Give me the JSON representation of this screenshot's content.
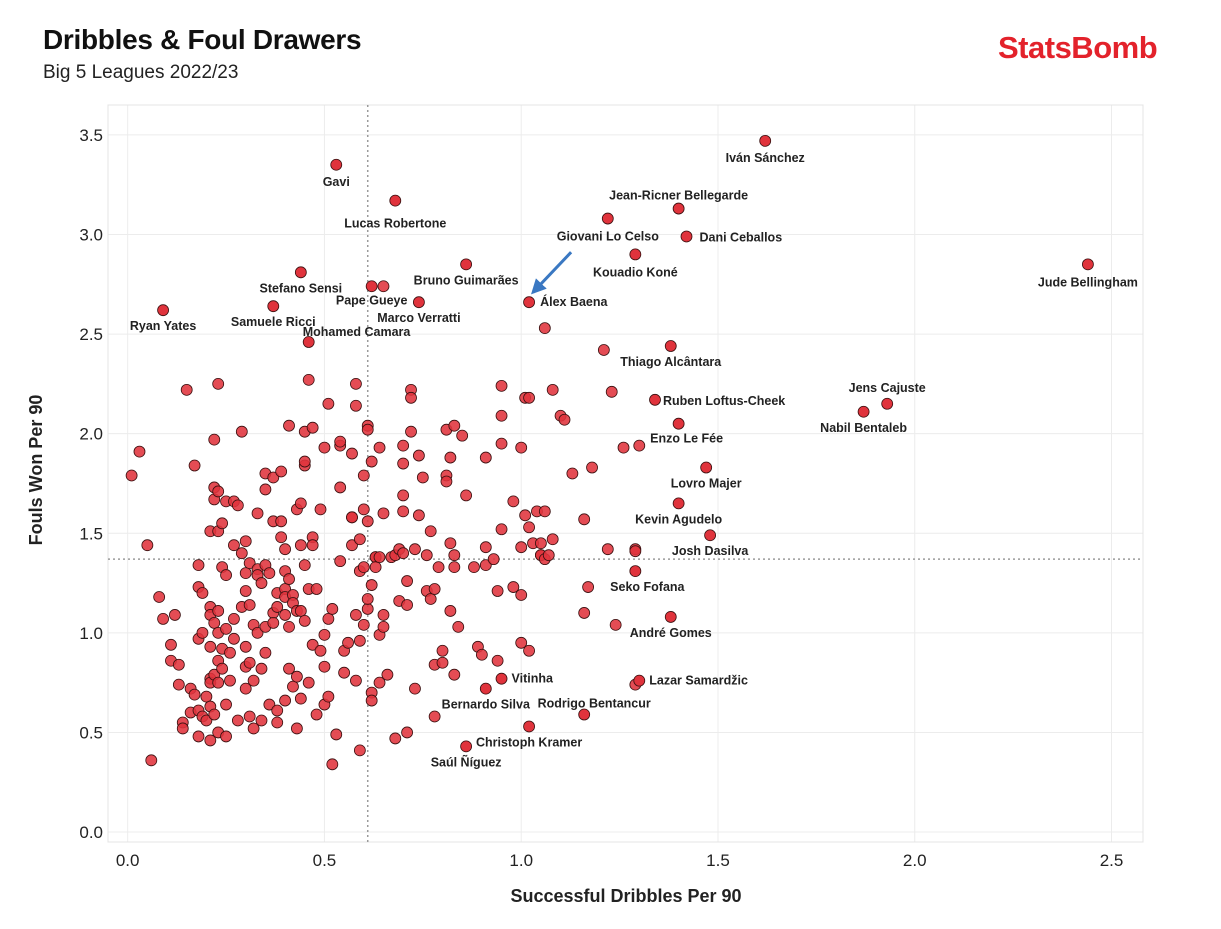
{
  "header": {
    "title": "Dribbles & Foul Drawers",
    "subtitle": "Big 5 Leagues 2022/23",
    "brand": "StatsBomb"
  },
  "colors": {
    "point_fill": "#e0333c",
    "point_stroke": "#3a1010",
    "ref_line": "#9a9a9a",
    "grid": "#ececec",
    "arrow": "#3a78c2",
    "brand": "#e3222b"
  },
  "chart_data": {
    "type": "scatter",
    "xlabel": "Successful Dribbles Per 90",
    "ylabel": "Fouls Won Per 90",
    "xlim": [
      -0.05,
      2.58
    ],
    "ylim": [
      -0.05,
      3.65
    ],
    "x_ticks": [
      0.0,
      0.5,
      1.0,
      1.5,
      2.0,
      2.5
    ],
    "y_ticks": [
      0.0,
      0.5,
      1.0,
      1.5,
      2.0,
      2.5,
      3.0,
      3.5
    ],
    "x_tick_labels": [
      "0.0",
      "0.5",
      "1.0",
      "1.5",
      "2.0",
      "2.5"
    ],
    "y_tick_labels": [
      "0.0",
      "0.5",
      "1.0",
      "1.5",
      "2.0",
      "2.5",
      "3.0",
      "3.5"
    ],
    "grid": true,
    "reference_lines": {
      "x": 0.61,
      "y": 1.37
    },
    "labeled_points": [
      {
        "name": "Iván Sánchez",
        "x": 1.62,
        "y": 3.47
      },
      {
        "name": "Gavi",
        "x": 0.53,
        "y": 3.35
      },
      {
        "name": "Lucas Robertone",
        "x": 0.68,
        "y": 3.17
      },
      {
        "name": "Jean-Ricner Bellegarde",
        "x": 1.4,
        "y": 3.13
      },
      {
        "name": "Giovani Lo Celso",
        "x": 1.22,
        "y": 3.08
      },
      {
        "name": "Dani Ceballos",
        "x": 1.42,
        "y": 2.99
      },
      {
        "name": "Kouadio Koné",
        "x": 1.29,
        "y": 2.9
      },
      {
        "name": "Jude Bellingham",
        "x": 2.44,
        "y": 2.85
      },
      {
        "name": "Bruno Guimarães",
        "x": 0.86,
        "y": 2.85
      },
      {
        "name": "Stefano Sensi",
        "x": 0.44,
        "y": 2.81
      },
      {
        "name": "Pape Gueye",
        "x": 0.62,
        "y": 2.74
      },
      {
        "name": "Álex Baena",
        "x": 1.02,
        "y": 2.66
      },
      {
        "name": "Marco Verratti",
        "x": 0.74,
        "y": 2.66
      },
      {
        "name": "Ryan Yates",
        "x": 0.09,
        "y": 2.62
      },
      {
        "name": "Samuele Ricci",
        "x": 0.37,
        "y": 2.64
      },
      {
        "name": "Mohamed Camara",
        "x": 0.46,
        "y": 2.46
      },
      {
        "name": "Thiago Alcântara",
        "x": 1.38,
        "y": 2.44
      },
      {
        "name": "Ruben Loftus-Cheek",
        "x": 1.34,
        "y": 2.17
      },
      {
        "name": "Jens Cajuste",
        "x": 1.93,
        "y": 2.15
      },
      {
        "name": "Nabil Bentaleb",
        "x": 1.87,
        "y": 2.11
      },
      {
        "name": "Enzo Le Fée",
        "x": 1.4,
        "y": 2.05
      },
      {
        "name": "Lovro Majer",
        "x": 1.47,
        "y": 1.83
      },
      {
        "name": "Kevin Agudelo",
        "x": 1.4,
        "y": 1.65
      },
      {
        "name": "Josh Dasilva",
        "x": 1.48,
        "y": 1.49
      },
      {
        "name": "Seko Fofana",
        "x": 1.29,
        "y": 1.31
      },
      {
        "name": "André Gomes",
        "x": 1.38,
        "y": 1.08
      },
      {
        "name": "Vitinha",
        "x": 0.95,
        "y": 0.77
      },
      {
        "name": "Lazar Samardžic",
        "x": 1.3,
        "y": 0.76
      },
      {
        "name": "Bernardo Silva",
        "x": 0.91,
        "y": 0.72
      },
      {
        "name": "Rodrigo Bentancur",
        "x": 1.16,
        "y": 0.59
      },
      {
        "name": "Christoph Kramer",
        "x": 1.02,
        "y": 0.53
      },
      {
        "name": "Saúl Ñíguez",
        "x": 0.86,
        "y": 0.43
      }
    ],
    "highlight": {
      "name": "Álex Baena",
      "x": 1.02,
      "y": 2.66
    },
    "other_points": [
      [
        0.01,
        1.79
      ],
      [
        0.03,
        1.91
      ],
      [
        0.05,
        1.44
      ],
      [
        0.06,
        0.36
      ],
      [
        0.08,
        1.18
      ],
      [
        0.09,
        1.07
      ],
      [
        0.11,
        0.86
      ],
      [
        0.11,
        0.94
      ],
      [
        0.12,
        1.09
      ],
      [
        0.13,
        0.84
      ],
      [
        0.13,
        0.74
      ],
      [
        0.14,
        0.55
      ],
      [
        0.14,
        0.52
      ],
      [
        0.15,
        2.22
      ],
      [
        0.16,
        0.72
      ],
      [
        0.16,
        0.6
      ],
      [
        0.17,
        1.84
      ],
      [
        0.17,
        0.69
      ],
      [
        0.18,
        1.34
      ],
      [
        0.18,
        1.23
      ],
      [
        0.18,
        0.97
      ],
      [
        0.18,
        0.61
      ],
      [
        0.18,
        0.48
      ],
      [
        0.19,
        1.2
      ],
      [
        0.19,
        1.0
      ],
      [
        0.19,
        0.58
      ],
      [
        0.2,
        0.68
      ],
      [
        0.2,
        0.56
      ],
      [
        0.21,
        1.51
      ],
      [
        0.21,
        1.13
      ],
      [
        0.21,
        1.09
      ],
      [
        0.21,
        0.93
      ],
      [
        0.21,
        0.77
      ],
      [
        0.21,
        0.75
      ],
      [
        0.21,
        0.63
      ],
      [
        0.21,
        0.46
      ],
      [
        0.22,
        1.73
      ],
      [
        0.22,
        1.97
      ],
      [
        0.22,
        1.67
      ],
      [
        0.22,
        1.05
      ],
      [
        0.22,
        0.59
      ],
      [
        0.22,
        0.79
      ],
      [
        0.23,
        2.25
      ],
      [
        0.23,
        1.51
      ],
      [
        0.23,
        1.71
      ],
      [
        0.23,
        1.11
      ],
      [
        0.23,
        1.0
      ],
      [
        0.23,
        0.86
      ],
      [
        0.23,
        0.75
      ],
      [
        0.23,
        0.5
      ],
      [
        0.24,
        1.55
      ],
      [
        0.24,
        1.33
      ],
      [
        0.24,
        0.92
      ],
      [
        0.24,
        0.82
      ],
      [
        0.25,
        1.66
      ],
      [
        0.25,
        1.29
      ],
      [
        0.25,
        1.02
      ],
      [
        0.25,
        0.64
      ],
      [
        0.25,
        0.48
      ],
      [
        0.26,
        0.76
      ],
      [
        0.26,
        0.9
      ],
      [
        0.27,
        1.66
      ],
      [
        0.27,
        1.44
      ],
      [
        0.27,
        1.07
      ],
      [
        0.27,
        0.97
      ],
      [
        0.28,
        0.56
      ],
      [
        0.28,
        1.64
      ],
      [
        0.29,
        2.01
      ],
      [
        0.29,
        1.4
      ],
      [
        0.29,
        1.13
      ],
      [
        0.3,
        1.46
      ],
      [
        0.3,
        1.21
      ],
      [
        0.3,
        1.3
      ],
      [
        0.3,
        0.93
      ],
      [
        0.3,
        0.83
      ],
      [
        0.3,
        0.72
      ],
      [
        0.31,
        1.35
      ],
      [
        0.31,
        1.14
      ],
      [
        0.31,
        0.85
      ],
      [
        0.31,
        0.58
      ],
      [
        0.32,
        1.04
      ],
      [
        0.32,
        0.76
      ],
      [
        0.32,
        0.52
      ],
      [
        0.33,
        1.6
      ],
      [
        0.33,
        1.32
      ],
      [
        0.33,
        1.29
      ],
      [
        0.33,
        1.0
      ],
      [
        0.34,
        0.82
      ],
      [
        0.34,
        0.56
      ],
      [
        0.34,
        1.25
      ],
      [
        0.35,
        1.72
      ],
      [
        0.35,
        1.03
      ],
      [
        0.35,
        0.9
      ],
      [
        0.35,
        1.34
      ],
      [
        0.35,
        1.8
      ],
      [
        0.36,
        1.3
      ],
      [
        0.36,
        0.64
      ],
      [
        0.37,
        1.56
      ],
      [
        0.37,
        1.78
      ],
      [
        0.37,
        1.1
      ],
      [
        0.37,
        1.05
      ],
      [
        0.38,
        1.2
      ],
      [
        0.38,
        1.13
      ],
      [
        0.38,
        0.55
      ],
      [
        0.38,
        0.61
      ],
      [
        0.39,
        1.56
      ],
      [
        0.39,
        1.48
      ],
      [
        0.39,
        1.81
      ],
      [
        0.4,
        1.42
      ],
      [
        0.4,
        1.31
      ],
      [
        0.4,
        1.22
      ],
      [
        0.4,
        1.18
      ],
      [
        0.4,
        1.09
      ],
      [
        0.4,
        0.66
      ],
      [
        0.41,
        2.04
      ],
      [
        0.41,
        1.27
      ],
      [
        0.41,
        1.03
      ],
      [
        0.41,
        0.82
      ],
      [
        0.42,
        1.19
      ],
      [
        0.42,
        1.15
      ],
      [
        0.42,
        0.73
      ],
      [
        0.43,
        1.62
      ],
      [
        0.43,
        1.11
      ],
      [
        0.43,
        0.78
      ],
      [
        0.43,
        0.52
      ],
      [
        0.44,
        1.65
      ],
      [
        0.44,
        1.44
      ],
      [
        0.44,
        1.11
      ],
      [
        0.44,
        0.67
      ],
      [
        0.45,
        1.84
      ],
      [
        0.45,
        1.86
      ],
      [
        0.45,
        2.01
      ],
      [
        0.45,
        1.34
      ],
      [
        0.45,
        1.06
      ],
      [
        0.46,
        2.27
      ],
      [
        0.46,
        1.22
      ],
      [
        0.46,
        0.75
      ],
      [
        0.47,
        2.03
      ],
      [
        0.47,
        1.48
      ],
      [
        0.47,
        1.44
      ],
      [
        0.47,
        0.94
      ],
      [
        0.48,
        1.22
      ],
      [
        0.48,
        0.59
      ],
      [
        0.49,
        1.62
      ],
      [
        0.49,
        0.91
      ],
      [
        0.5,
        1.93
      ],
      [
        0.5,
        0.99
      ],
      [
        0.5,
        0.83
      ],
      [
        0.5,
        0.64
      ],
      [
        0.51,
        2.15
      ],
      [
        0.51,
        1.07
      ],
      [
        0.51,
        0.68
      ],
      [
        0.52,
        1.12
      ],
      [
        0.52,
        0.34
      ],
      [
        0.53,
        0.49
      ],
      [
        0.54,
        1.94
      ],
      [
        0.54,
        1.96
      ],
      [
        0.54,
        1.73
      ],
      [
        0.54,
        1.36
      ],
      [
        0.55,
        0.91
      ],
      [
        0.55,
        0.8
      ],
      [
        0.56,
        0.95
      ],
      [
        0.57,
        1.9
      ],
      [
        0.57,
        1.58
      ],
      [
        0.57,
        1.44
      ],
      [
        0.57,
        1.58
      ],
      [
        0.58,
        2.25
      ],
      [
        0.58,
        2.14
      ],
      [
        0.58,
        1.09
      ],
      [
        0.58,
        0.76
      ],
      [
        0.59,
        1.31
      ],
      [
        0.59,
        1.47
      ],
      [
        0.59,
        0.96
      ],
      [
        0.59,
        0.41
      ],
      [
        0.6,
        1.79
      ],
      [
        0.6,
        1.62
      ],
      [
        0.6,
        1.33
      ],
      [
        0.6,
        1.04
      ],
      [
        0.61,
        2.04
      ],
      [
        0.61,
        2.02
      ],
      [
        0.61,
        1.56
      ],
      [
        0.61,
        1.12
      ],
      [
        0.61,
        1.17
      ],
      [
        0.62,
        1.86
      ],
      [
        0.62,
        1.24
      ],
      [
        0.62,
        0.7
      ],
      [
        0.62,
        0.66
      ],
      [
        0.63,
        1.38
      ],
      [
        0.63,
        1.38
      ],
      [
        0.63,
        1.33
      ],
      [
        0.64,
        1.93
      ],
      [
        0.64,
        1.38
      ],
      [
        0.64,
        0.99
      ],
      [
        0.64,
        0.75
      ],
      [
        0.65,
        2.74
      ],
      [
        0.65,
        1.6
      ],
      [
        0.65,
        1.09
      ],
      [
        0.65,
        1.03
      ],
      [
        0.66,
        0.79
      ],
      [
        0.67,
        1.38
      ],
      [
        0.68,
        1.39
      ],
      [
        0.68,
        0.47
      ],
      [
        0.69,
        1.42
      ],
      [
        0.69,
        1.16
      ],
      [
        0.7,
        1.85
      ],
      [
        0.7,
        1.94
      ],
      [
        0.7,
        1.69
      ],
      [
        0.7,
        1.61
      ],
      [
        0.7,
        1.4
      ],
      [
        0.71,
        1.26
      ],
      [
        0.71,
        1.14
      ],
      [
        0.71,
        0.5
      ],
      [
        0.72,
        2.22
      ],
      [
        0.72,
        2.18
      ],
      [
        0.72,
        2.01
      ],
      [
        0.73,
        1.42
      ],
      [
        0.73,
        0.72
      ],
      [
        0.74,
        1.89
      ],
      [
        0.74,
        1.59
      ],
      [
        0.75,
        1.78
      ],
      [
        0.76,
        1.39
      ],
      [
        0.76,
        1.21
      ],
      [
        0.77,
        1.51
      ],
      [
        0.77,
        1.17
      ],
      [
        0.78,
        1.22
      ],
      [
        0.78,
        0.84
      ],
      [
        0.78,
        0.58
      ],
      [
        0.79,
        1.33
      ],
      [
        0.8,
        0.91
      ],
      [
        0.8,
        0.85
      ],
      [
        0.81,
        1.79
      ],
      [
        0.81,
        1.76
      ],
      [
        0.81,
        2.02
      ],
      [
        0.82,
        1.88
      ],
      [
        0.82,
        1.45
      ],
      [
        0.82,
        1.11
      ],
      [
        0.83,
        2.04
      ],
      [
        0.83,
        1.39
      ],
      [
        0.83,
        1.33
      ],
      [
        0.83,
        0.79
      ],
      [
        0.84,
        1.03
      ],
      [
        0.85,
        1.99
      ],
      [
        0.86,
        1.69
      ],
      [
        0.88,
        1.33
      ],
      [
        0.89,
        0.93
      ],
      [
        0.9,
        0.89
      ],
      [
        0.91,
        1.88
      ],
      [
        0.91,
        1.43
      ],
      [
        0.91,
        1.34
      ],
      [
        0.93,
        1.37
      ],
      [
        0.94,
        1.21
      ],
      [
        0.94,
        0.86
      ],
      [
        0.95,
        2.24
      ],
      [
        0.95,
        2.09
      ],
      [
        0.95,
        1.95
      ],
      [
        0.95,
        1.52
      ],
      [
        0.98,
        1.66
      ],
      [
        0.98,
        1.23
      ],
      [
        1.0,
        1.93
      ],
      [
        1.0,
        1.19
      ],
      [
        1.0,
        1.43
      ],
      [
        1.0,
        0.95
      ],
      [
        1.01,
        2.18
      ],
      [
        1.01,
        1.59
      ],
      [
        1.02,
        2.18
      ],
      [
        1.02,
        1.53
      ],
      [
        1.02,
        0.91
      ],
      [
        1.03,
        1.45
      ],
      [
        1.04,
        1.61
      ],
      [
        1.05,
        1.45
      ],
      [
        1.05,
        1.39
      ],
      [
        1.05,
        1.39
      ],
      [
        1.06,
        1.61
      ],
      [
        1.06,
        1.37
      ],
      [
        1.06,
        2.53
      ],
      [
        1.07,
        1.39
      ],
      [
        1.08,
        1.47
      ],
      [
        1.08,
        2.22
      ],
      [
        1.1,
        2.09
      ],
      [
        1.11,
        2.07
      ],
      [
        1.13,
        1.8
      ],
      [
        1.16,
        1.57
      ],
      [
        1.16,
        1.1
      ],
      [
        1.17,
        1.23
      ],
      [
        1.18,
        1.83
      ],
      [
        1.21,
        2.42
      ],
      [
        1.22,
        1.42
      ],
      [
        1.23,
        2.21
      ],
      [
        1.24,
        1.04
      ],
      [
        1.26,
        1.93
      ],
      [
        1.29,
        1.42
      ],
      [
        1.29,
        1.41
      ],
      [
        1.29,
        0.74
      ],
      [
        1.3,
        1.94
      ]
    ]
  }
}
